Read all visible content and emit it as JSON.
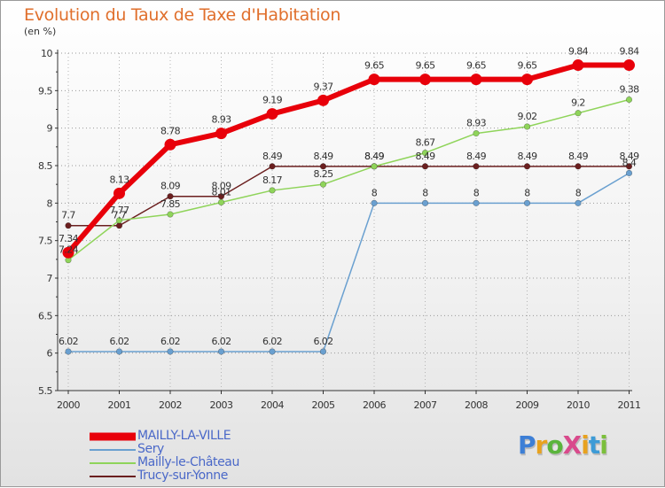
{
  "header": {
    "title": "Evolution du Taux de Taxe d'Habitation",
    "unit": "(en %)"
  },
  "brand": {
    "text": "ProXiti",
    "letters": [
      {
        "ch": "P",
        "color": "#3d7fd6"
      },
      {
        "ch": "r",
        "color": "#e8a21f"
      },
      {
        "ch": "o",
        "color": "#5ab43c"
      },
      {
        "ch": "X",
        "color": "#d94a8c"
      },
      {
        "ch": "i",
        "color": "#e8a21f"
      },
      {
        "ch": "t",
        "color": "#3d9bd6"
      },
      {
        "ch": "i",
        "color": "#7bbf3a"
      }
    ]
  },
  "chart_data": {
    "type": "line",
    "title": "Evolution du Taux de Taxe d'Habitation",
    "ylabel": "(en %)",
    "xlabel": "",
    "x": [
      "2000",
      "2001",
      "2002",
      "2003",
      "2004",
      "2005",
      "2006",
      "2007",
      "2008",
      "2009",
      "2010",
      "2011"
    ],
    "ylim": [
      5.5,
      10
    ],
    "yticks": [
      "5.5",
      "6",
      "6.5",
      "7",
      "7.5",
      "8",
      "8.5",
      "9",
      "9.5",
      "10"
    ],
    "grid": true,
    "legend_position": "bottom-left",
    "series": [
      {
        "name": "MAILLY-LA-VILLE",
        "color": "#e8000a",
        "values": [
          7.34,
          8.13,
          8.78,
          8.93,
          9.19,
          9.37,
          9.65,
          9.65,
          9.65,
          9.65,
          9.84,
          9.84
        ],
        "labels": [
          "7.34",
          "8.13",
          "8.78",
          "8.93",
          "9.19",
          "9.37",
          "9.65",
          "9.65",
          "9.65",
          "9.65",
          "9.84",
          "9.84"
        ]
      },
      {
        "name": "Sery",
        "color": "#6aa0d0",
        "values": [
          6.02,
          6.02,
          6.02,
          6.02,
          6.02,
          6.02,
          8,
          8,
          8,
          8,
          8,
          8.4
        ],
        "labels": [
          "6.02",
          "6.02",
          "6.02",
          "6.02",
          "6.02",
          "6.02",
          "8",
          "8",
          "8",
          "8",
          "8",
          "8.4"
        ]
      },
      {
        "name": "Mailly-le-Château",
        "color": "#8fd45a",
        "values": [
          7.24,
          7.77,
          7.85,
          8.01,
          8.17,
          8.25,
          8.49,
          8.67,
          8.93,
          9.02,
          9.2,
          9.38
        ],
        "labels": [
          "7.24",
          "7.77",
          "7.85",
          "8.01",
          "8.17",
          "8.25",
          "8.49",
          "8.67",
          "8.93",
          "9.02",
          "9.2",
          "9.38"
        ]
      },
      {
        "name": "Trucy-sur-Yonne",
        "color": "#6b1f1f",
        "values": [
          7.7,
          7.7,
          8.09,
          8.09,
          8.49,
          8.49,
          8.49,
          8.49,
          8.49,
          8.49,
          8.49,
          8.49
        ],
        "labels": [
          "7.7",
          "7.7",
          "8.09",
          "8.09",
          "8.49",
          "8.49",
          "8.49",
          "8.49",
          "8.49",
          "8.49",
          "8.49",
          "8.49"
        ]
      }
    ]
  }
}
